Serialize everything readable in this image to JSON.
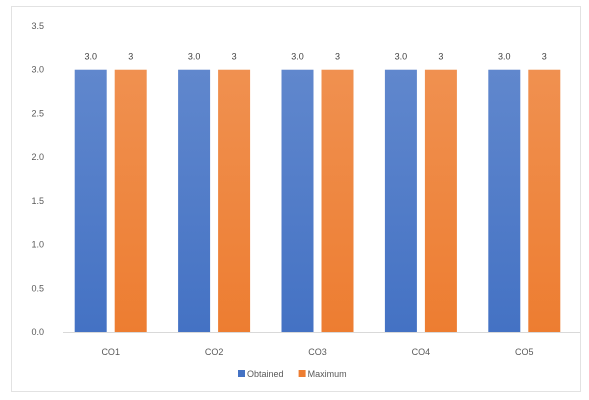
{
  "chart_data": {
    "type": "bar",
    "categories": [
      "CO1",
      "CO2",
      "CO3",
      "CO4",
      "CO5"
    ],
    "series": [
      {
        "name": "Obtained",
        "values": [
          3.0,
          3.0,
          3.0,
          3.0,
          3.0
        ],
        "labels": [
          "3.0",
          "3.0",
          "3.0",
          "3.0",
          "3.0"
        ],
        "color": "#4472c4"
      },
      {
        "name": "Maximum",
        "values": [
          3,
          3,
          3,
          3,
          3
        ],
        "labels": [
          "3",
          "3",
          "3",
          "3",
          "3"
        ],
        "color": "#ed7d31"
      }
    ],
    "yticks": [
      "0.0",
      "0.5",
      "1.0",
      "1.5",
      "2.0",
      "2.5",
      "3.0",
      "3.5"
    ],
    "ylim": [
      0,
      3.5
    ],
    "grid": false,
    "legend_position": "bottom"
  }
}
